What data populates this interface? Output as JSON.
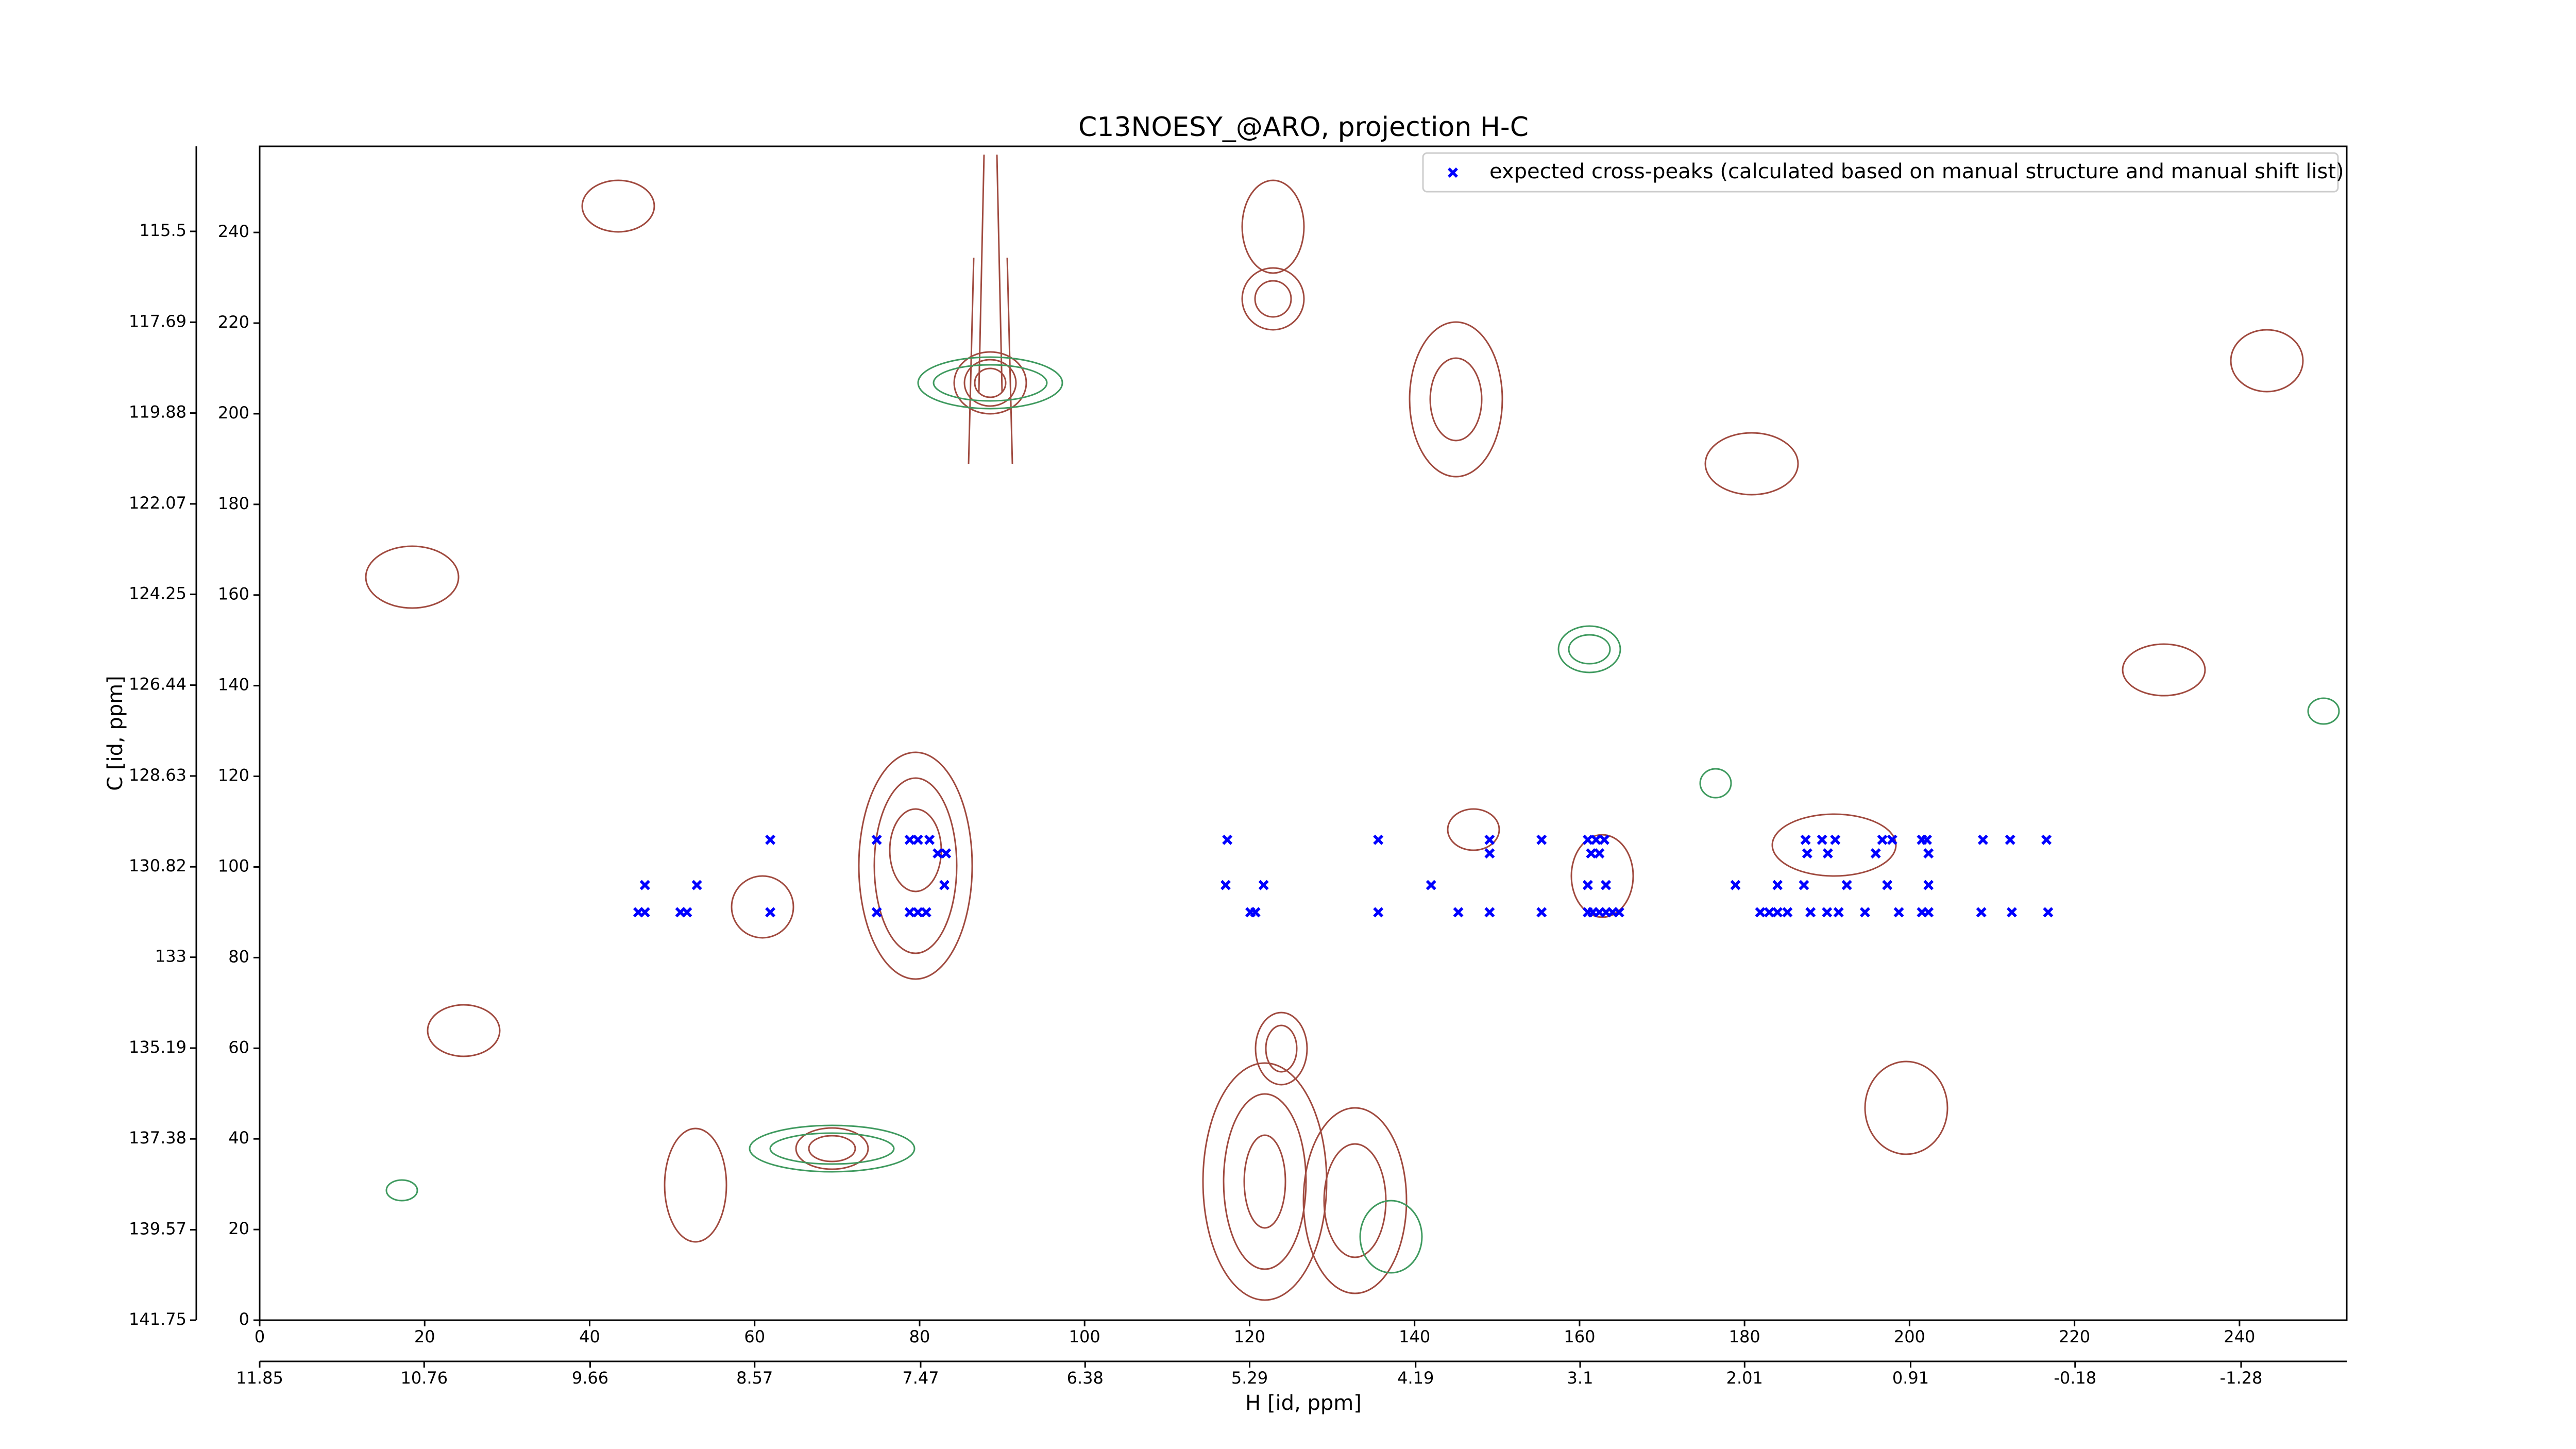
{
  "chart_data": {
    "type": "scatter",
    "title": "C13NOESY_@ARO, projection H-C",
    "x_label": "H [id, ppm]",
    "y_label": "C [id, ppm]",
    "xlim": [
      0,
      253
    ],
    "xticks": [
      0,
      20,
      40,
      60,
      80,
      100,
      120,
      140,
      160,
      180,
      200,
      220,
      240
    ],
    "x2lim": [
      11.85,
      -1.98
    ],
    "x2ticks": [
      11.85,
      10.76,
      9.66,
      8.57,
      7.47,
      6.38,
      5.29,
      4.19,
      3.1,
      2.01,
      0.91,
      -0.18,
      -1.28
    ],
    "ylim": [
      0,
      259
    ],
    "yticks": [
      0,
      20,
      40,
      60,
      80,
      100,
      120,
      140,
      160,
      180,
      200,
      220,
      240
    ],
    "y2lim": [
      141.75,
      113.45
    ],
    "y2ticks": [
      141.75,
      139.57,
      137.38,
      135.19,
      133.0,
      130.82,
      128.63,
      126.44,
      124.25,
      122.07,
      119.88,
      117.69,
      115.5
    ],
    "legend_position": "upper right",
    "series": [
      {
        "name": "expected cross-peaks (calculated based on manual structure and manual shift list)",
        "color": "#0000ff",
        "x": [
          45.9,
          46.7,
          51.0,
          51.8,
          61.9,
          74.8,
          78.8,
          79.8,
          80.8,
          120.1,
          120.7,
          135.6,
          145.3,
          149.1,
          155.4,
          161.0,
          161.6,
          162.4,
          163.2,
          164.0,
          164.8,
          181.9,
          183.0,
          184.0,
          185.2,
          188.0,
          190.0,
          191.4,
          194.6,
          198.7,
          201.5,
          202.3,
          208.7,
          212.4,
          216.8,
          46.7,
          53.0,
          83.0,
          117.1,
          121.7,
          142.0,
          161.0,
          163.2,
          178.9,
          184.0,
          187.2,
          192.4,
          197.3,
          202.3,
          61.9,
          74.8,
          78.8,
          79.8,
          81.2,
          117.3,
          135.6,
          149.1,
          155.4,
          161.0,
          162.0,
          163.0,
          187.4,
          189.4,
          191.0,
          196.7,
          197.9,
          201.5,
          202.1,
          208.9,
          212.2,
          216.6,
          82.2,
          83.2,
          149.1,
          161.4,
          162.4,
          187.6,
          190.1,
          195.9,
          202.3
        ],
        "values": [
          90,
          90,
          90,
          90,
          90,
          90,
          90,
          90,
          90,
          90,
          90,
          90,
          90,
          90,
          90,
          90,
          90,
          90,
          90,
          90,
          90,
          90,
          90,
          90,
          90,
          90,
          90,
          90,
          90,
          90,
          90,
          90,
          90,
          90,
          90,
          96,
          96,
          96,
          96,
          96,
          96,
          96,
          96,
          96,
          96,
          96,
          96,
          96,
          96,
          106,
          106,
          106,
          106,
          106,
          106,
          106,
          106,
          106,
          106,
          106,
          106,
          106,
          106,
          106,
          106,
          106,
          106,
          106,
          106,
          106,
          106,
          103,
          103,
          103,
          103,
          103,
          103,
          103,
          103,
          103
        ]
      }
    ]
  }
}
